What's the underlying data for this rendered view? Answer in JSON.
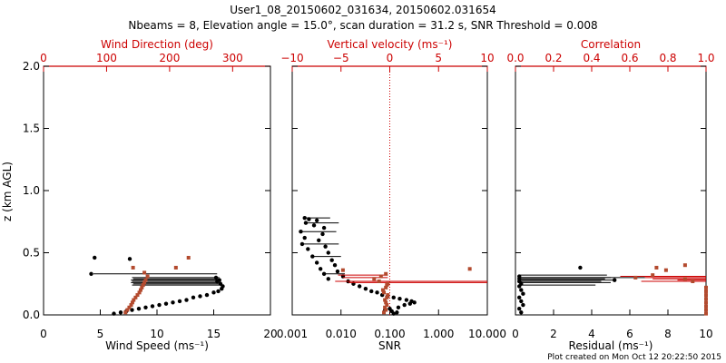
{
  "figure": {
    "title_line1": "User1_08_20150602_031634, 20150602.031654",
    "title_line2": "Nbeams = 8, Elevation angle = 15.0°, scan duration = 31.2 s, SNR Threshold = 0.008",
    "footer": "Plot created on Mon Oct 12 20:22:50 2015"
  },
  "colors": {
    "black": "#000000",
    "red": "#cc0000",
    "brown": "#b34a2e"
  },
  "chart_data": [
    {
      "type": "scatter",
      "panel": "wind",
      "ylabel": "z (km AGL)",
      "ylim": [
        0,
        2
      ],
      "yticks": [
        "0.0",
        "0.5",
        "1.0",
        "1.5",
        "2.0"
      ],
      "bottom_axis": {
        "label": "Wind Speed (ms⁻¹)",
        "range": [
          0,
          20
        ],
        "ticks": [
          "0",
          "5",
          "10",
          "15",
          "20"
        ]
      },
      "top_axis": {
        "label": "Wind Direction (deg)",
        "range": [
          0,
          360
        ],
        "ticks": [
          "0",
          "100",
          "200",
          "300"
        ],
        "color": "#cc0000"
      },
      "series": [
        {
          "axis": "bottom",
          "color": "#000000",
          "points": [
            [
              6.2,
              0.01
            ],
            [
              6.8,
              0.02
            ],
            [
              7.3,
              0.03
            ],
            [
              7.8,
              0.04
            ],
            [
              8.4,
              0.05
            ],
            [
              9.0,
              0.06
            ],
            [
              9.6,
              0.07
            ],
            [
              10.2,
              0.08
            ],
            [
              10.8,
              0.09
            ],
            [
              11.4,
              0.1
            ],
            [
              12.0,
              0.11
            ],
            [
              12.6,
              0.12
            ],
            [
              13.2,
              0.14
            ],
            [
              13.8,
              0.15
            ],
            [
              14.4,
              0.16
            ],
            [
              15.0,
              0.18
            ],
            [
              15.4,
              0.19
            ],
            [
              15.7,
              0.21
            ],
            [
              15.8,
              0.23
            ],
            [
              15.6,
              0.25
            ],
            [
              15.3,
              0.27
            ],
            [
              15.5,
              0.28
            ],
            [
              15.2,
              0.3
            ],
            [
              4.2,
              0.33
            ],
            [
              4.5,
              0.46
            ],
            [
              7.6,
              0.45
            ]
          ],
          "whiskers": [
            [
              7.8,
              15.6,
              0.24
            ],
            [
              7.9,
              15.5,
              0.25
            ],
            [
              7.7,
              15.5,
              0.26
            ],
            [
              7.8,
              15.6,
              0.27
            ],
            [
              7.7,
              15.4,
              0.28
            ],
            [
              7.9,
              15.6,
              0.29
            ],
            [
              7.8,
              15.5,
              0.3
            ],
            [
              4.4,
              15.3,
              0.33
            ]
          ]
        },
        {
          "axis": "top",
          "color": "#b34a2e",
          "points": [
            [
              130,
              0.02
            ],
            [
              133,
              0.04
            ],
            [
              136,
              0.06
            ],
            [
              139,
              0.08
            ],
            [
              141,
              0.1
            ],
            [
              143,
              0.12
            ],
            [
              146,
              0.14
            ],
            [
              149,
              0.16
            ],
            [
              152,
              0.18
            ],
            [
              154,
              0.2
            ],
            [
              156,
              0.22
            ],
            [
              158,
              0.24
            ],
            [
              160,
              0.26
            ],
            [
              162,
              0.28
            ],
            [
              165,
              0.31
            ],
            [
              160,
              0.34
            ],
            [
              142,
              0.38
            ],
            [
              210,
              0.38
            ],
            [
              230,
              0.46
            ]
          ]
        }
      ]
    },
    {
      "type": "scatter",
      "panel": "snr",
      "ylim": [
        0,
        2
      ],
      "bottom_axis": {
        "label": "SNR",
        "scale": "log",
        "range": [
          0.001,
          10
        ],
        "ticks": [
          "0.001",
          "0.010",
          "0.100",
          "1.000",
          "10.000"
        ]
      },
      "top_axis": {
        "label": "Vertical velocity (ms⁻¹)",
        "range": [
          -10,
          10
        ],
        "ticks": [
          "−10",
          "−5",
          "0",
          "5",
          "10"
        ],
        "color": "#cc0000",
        "zero_line": true
      },
      "series": [
        {
          "axis": "bottom",
          "color": "#000000",
          "points": [
            [
              0.0018,
              0.78
            ],
            [
              0.0022,
              0.77
            ],
            [
              0.0032,
              0.76
            ],
            [
              0.0019,
              0.74
            ],
            [
              0.0028,
              0.72
            ],
            [
              0.0045,
              0.7
            ],
            [
              0.0015,
              0.67
            ],
            [
              0.0042,
              0.65
            ],
            [
              0.0018,
              0.62
            ],
            [
              0.0035,
              0.6
            ],
            [
              0.0016,
              0.57
            ],
            [
              0.0048,
              0.55
            ],
            [
              0.0021,
              0.53
            ],
            [
              0.0055,
              0.5
            ],
            [
              0.0026,
              0.47
            ],
            [
              0.0065,
              0.44
            ],
            [
              0.0032,
              0.42
            ],
            [
              0.0075,
              0.4
            ],
            [
              0.0038,
              0.37
            ],
            [
              0.0085,
              0.35
            ],
            [
              0.0045,
              0.33
            ],
            [
              0.011,
              0.31
            ],
            [
              0.0055,
              0.29
            ],
            [
              0.014,
              0.27
            ],
            [
              0.018,
              0.25
            ],
            [
              0.024,
              0.23
            ],
            [
              0.032,
              0.21
            ],
            [
              0.042,
              0.19
            ],
            [
              0.055,
              0.18
            ],
            [
              0.07,
              0.16
            ],
            [
              0.09,
              0.15
            ],
            [
              0.12,
              0.14
            ],
            [
              0.16,
              0.13
            ],
            [
              0.22,
              0.12
            ],
            [
              0.28,
              0.11
            ],
            [
              0.32,
              0.1
            ],
            [
              0.26,
              0.09
            ],
            [
              0.2,
              0.08
            ],
            [
              0.15,
              0.06
            ],
            [
              0.1,
              0.05
            ],
            [
              0.08,
              0.04
            ],
            [
              0.11,
              0.03
            ],
            [
              0.14,
              0.02
            ],
            [
              0.12,
              0.01
            ]
          ],
          "whiskers": [
            [
              0.0018,
              0.006,
              0.78
            ],
            [
              0.0019,
              0.009,
              0.74
            ],
            [
              0.0015,
              0.008,
              0.67
            ],
            [
              0.0016,
              0.009,
              0.57
            ],
            [
              0.0026,
              0.01,
              0.47
            ],
            [
              0.0045,
              0.012,
              0.33
            ]
          ]
        },
        {
          "axis": "top",
          "color": "#b34a2e",
          "points": [
            [
              -0.6,
              0.02
            ],
            [
              -0.4,
              0.04
            ],
            [
              -0.5,
              0.06
            ],
            [
              -0.3,
              0.08
            ],
            [
              -0.4,
              0.1
            ],
            [
              -0.5,
              0.12
            ],
            [
              -0.3,
              0.14
            ],
            [
              -0.2,
              0.16
            ],
            [
              -0.6,
              0.18
            ],
            [
              -0.7,
              0.2
            ],
            [
              -0.4,
              0.22
            ],
            [
              -0.3,
              0.24
            ],
            [
              -0.2,
              0.25
            ],
            [
              -1.1,
              0.27
            ],
            [
              -1.6,
              0.29
            ],
            [
              -0.9,
              0.31
            ],
            [
              -4.8,
              0.36
            ],
            [
              8.2,
              0.37
            ],
            [
              -0.4,
              0.33
            ]
          ],
          "whiskers": [
            [
              -5.3,
              -0.2,
              0.32
            ],
            [
              -4.8,
              -0.2,
              0.3
            ],
            [
              -5.6,
              10,
              0.27
            ],
            [
              -4.2,
              10,
              0.26
            ]
          ]
        }
      ]
    },
    {
      "type": "scatter",
      "panel": "residual",
      "ylim": [
        0,
        2
      ],
      "bottom_axis": {
        "label": "Residual (ms⁻¹)",
        "range": [
          0,
          10
        ],
        "ticks": [
          "0",
          "2",
          "4",
          "6",
          "8",
          "10"
        ]
      },
      "top_axis": {
        "label": "Correlation",
        "range": [
          0,
          1
        ],
        "ticks": [
          "0.0",
          "0.2",
          "0.4",
          "0.6",
          "0.8",
          "1.0"
        ],
        "color": "#cc0000"
      },
      "series": [
        {
          "axis": "bottom",
          "color": "#000000",
          "points": [
            [
              0.3,
              0.02
            ],
            [
              0.2,
              0.05
            ],
            [
              0.4,
              0.08
            ],
            [
              0.3,
              0.11
            ],
            [
              0.2,
              0.14
            ],
            [
              0.4,
              0.17
            ],
            [
              0.3,
              0.2
            ],
            [
              0.2,
              0.23
            ],
            [
              0.3,
              0.25
            ],
            [
              0.2,
              0.27
            ],
            [
              0.2,
              0.29
            ],
            [
              0.2,
              0.31
            ],
            [
              3.4,
              0.38
            ],
            [
              5.2,
              0.28
            ]
          ],
          "whiskers": [
            [
              0.2,
              5.0,
              0.3
            ],
            [
              0.2,
              4.7,
              0.29
            ],
            [
              0.2,
              5.2,
              0.28
            ],
            [
              0.2,
              4.5,
              0.27
            ],
            [
              0.2,
              5.0,
              0.26
            ],
            [
              0.2,
              4.2,
              0.24
            ],
            [
              0.2,
              4.8,
              0.32
            ],
            [
              0.2,
              6.8,
              0.3
            ]
          ]
        },
        {
          "axis": "top",
          "color": "#b34a2e",
          "points": [
            [
              1.0,
              0.01
            ],
            [
              1.0,
              0.04
            ],
            [
              1.0,
              0.07
            ],
            [
              1.0,
              0.1
            ],
            [
              1.0,
              0.13
            ],
            [
              1.0,
              0.16
            ],
            [
              1.0,
              0.19
            ],
            [
              1.0,
              0.22
            ],
            [
              0.93,
              0.27
            ],
            [
              0.89,
              0.29
            ],
            [
              0.63,
              0.3
            ],
            [
              0.72,
              0.32
            ],
            [
              0.74,
              0.38
            ],
            [
              0.79,
              0.36
            ],
            [
              0.89,
              0.4
            ]
          ],
          "whiskers": [
            [
              0.55,
              1.0,
              0.31
            ],
            [
              0.68,
              1.0,
              0.3
            ],
            [
              0.72,
              1.0,
              0.29
            ],
            [
              0.85,
              1.0,
              0.28
            ],
            [
              0.66,
              1.0,
              0.27
            ]
          ]
        }
      ]
    }
  ]
}
